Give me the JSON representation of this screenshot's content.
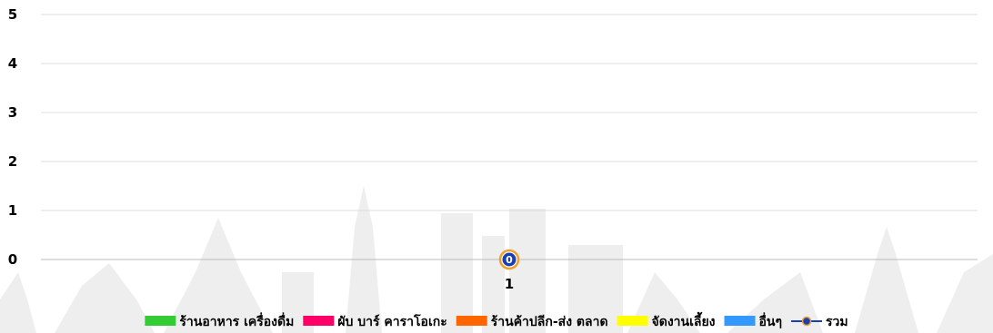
{
  "chart_data": {
    "type": "line",
    "categories": [
      "1"
    ],
    "ylim": [
      0,
      5
    ],
    "yticks": [
      0,
      1,
      2,
      3,
      4,
      5
    ],
    "grid": true,
    "legend_position": "bottom",
    "series": [
      {
        "name": "ร้านอาหาร เครื่องดื่ม",
        "kind": "bar",
        "color": "#33cc33",
        "values": [
          0
        ]
      },
      {
        "name": "ผับ บาร์ คาราโอเกะ",
        "kind": "bar",
        "color": "#ff0066",
        "values": [
          0
        ]
      },
      {
        "name": "ร้านค้าปลีก-ส่ง ตลาด",
        "kind": "bar",
        "color": "#ff6600",
        "values": [
          0
        ]
      },
      {
        "name": "จัดงานเลี้ยง",
        "kind": "bar",
        "color": "#ffff00",
        "values": [
          0
        ]
      },
      {
        "name": "อื่นๆ",
        "kind": "bar",
        "color": "#3399ff",
        "values": [
          0
        ]
      },
      {
        "name": "รวม",
        "kind": "line",
        "color": "#1a3fb0",
        "values": [
          0
        ],
        "data_labels": [
          "0"
        ]
      }
    ]
  }
}
